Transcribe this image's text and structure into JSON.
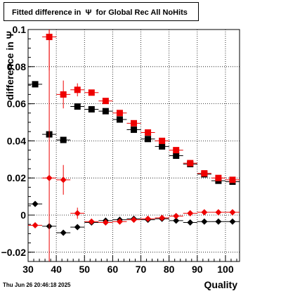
{
  "title": "Fitted difference in  Ψ  for Global Rec All NoHits",
  "footer": "Thu Jun 26 20:46:18 2025",
  "colors": {
    "series_black": "#000000",
    "series_red": "#ee0000",
    "grid": "#000000"
  },
  "chart_data": {
    "type": "scatter",
    "title": "Fitted difference in  Ψ  for Global Rec All NoHits",
    "xlabel": "Quality",
    "ylabel": "difference in  Ψ",
    "xlim": [
      30,
      105
    ],
    "ylim": [
      -0.025,
      0.1
    ],
    "x_ticks": [
      30,
      40,
      50,
      60,
      70,
      80,
      90,
      100
    ],
    "y_ticks": [
      -0.02,
      0,
      0.02,
      0.04,
      0.06,
      0.08,
      0.1
    ],
    "y_tick_labels": [
      "−0.02",
      "0",
      "0.02",
      "0.04",
      "0.06",
      "0.08",
      "0.1"
    ],
    "grid": true,
    "series": [
      {
        "marker": "square",
        "color": "#000000",
        "points": [
          {
            "x": 32.5,
            "y": 0.0705,
            "yerr": 0.0
          },
          {
            "x": 37.5,
            "y": 0.0435,
            "yerr": 0.0
          },
          {
            "x": 42.5,
            "y": 0.0405,
            "yerr": 0.0
          },
          {
            "x": 47.5,
            "y": 0.0585,
            "yerr": 0.0
          },
          {
            "x": 52.5,
            "y": 0.057,
            "yerr": 0.0
          },
          {
            "x": 57.5,
            "y": 0.056,
            "yerr": 0.0
          },
          {
            "x": 62.5,
            "y": 0.0515,
            "yerr": 0.0
          },
          {
            "x": 67.5,
            "y": 0.046,
            "yerr": 0.0
          },
          {
            "x": 72.5,
            "y": 0.041,
            "yerr": 0.0
          },
          {
            "x": 77.5,
            "y": 0.037,
            "yerr": 0.0
          },
          {
            "x": 82.5,
            "y": 0.032,
            "yerr": 0.0
          },
          {
            "x": 87.5,
            "y": 0.0275,
            "yerr": 0.0
          },
          {
            "x": 92.5,
            "y": 0.022,
            "yerr": 0.0
          },
          {
            "x": 97.5,
            "y": 0.0185,
            "yerr": 0.0
          },
          {
            "x": 102.5,
            "y": 0.018,
            "yerr": 0.0
          }
        ]
      },
      {
        "marker": "square",
        "color": "#ee0000",
        "points": [
          {
            "x": 37.5,
            "y": 0.096,
            "yerr": 0.018
          },
          {
            "x": 42.5,
            "y": 0.065,
            "yerr": 0.0075
          },
          {
            "x": 47.5,
            "y": 0.0675,
            "yerr": 0.0035
          },
          {
            "x": 52.5,
            "y": 0.066,
            "yerr": 0.0
          },
          {
            "x": 57.5,
            "y": 0.0615,
            "yerr": 0.0
          },
          {
            "x": 62.5,
            "y": 0.055,
            "yerr": 0.0
          },
          {
            "x": 67.5,
            "y": 0.0495,
            "yerr": 0.0
          },
          {
            "x": 72.5,
            "y": 0.0445,
            "yerr": 0.0
          },
          {
            "x": 77.5,
            "y": 0.04,
            "yerr": 0.0
          },
          {
            "x": 82.5,
            "y": 0.035,
            "yerr": 0.0
          },
          {
            "x": 87.5,
            "y": 0.028,
            "yerr": 0.0
          },
          {
            "x": 92.5,
            "y": 0.0225,
            "yerr": 0.0
          },
          {
            "x": 97.5,
            "y": 0.02,
            "yerr": 0.0
          },
          {
            "x": 102.5,
            "y": 0.019,
            "yerr": 0.0
          }
        ]
      },
      {
        "marker": "diamond",
        "color": "#000000",
        "points": [
          {
            "x": 32.5,
            "y": 0.006,
            "yerr": 0.0
          },
          {
            "x": 37.5,
            "y": -0.006,
            "yerr": 0.0
          },
          {
            "x": 42.5,
            "y": -0.0095,
            "yerr": 0.0
          },
          {
            "x": 47.5,
            "y": -0.0065,
            "yerr": 0.0
          },
          {
            "x": 52.5,
            "y": -0.004,
            "yerr": 0.0
          },
          {
            "x": 57.5,
            "y": -0.003,
            "yerr": 0.0
          },
          {
            "x": 62.5,
            "y": -0.0025,
            "yerr": 0.0
          },
          {
            "x": 67.5,
            "y": -0.002,
            "yerr": 0.0
          },
          {
            "x": 72.5,
            "y": -0.0025,
            "yerr": 0.0
          },
          {
            "x": 77.5,
            "y": -0.002,
            "yerr": 0.0
          },
          {
            "x": 82.5,
            "y": -0.003,
            "yerr": 0.0
          },
          {
            "x": 87.5,
            "y": -0.004,
            "yerr": 0.0
          },
          {
            "x": 92.5,
            "y": -0.0035,
            "yerr": 0.0
          },
          {
            "x": 97.5,
            "y": -0.0035,
            "yerr": 0.0
          },
          {
            "x": 102.5,
            "y": -0.0035,
            "yerr": 0.0
          }
        ]
      },
      {
        "marker": "diamond",
        "color": "#ee0000",
        "points": [
          {
            "x": 32.5,
            "y": -0.0055,
            "yerr": 0.0
          },
          {
            "x": 37.5,
            "y": 0.02,
            "yerr": 0.093
          },
          {
            "x": 42.5,
            "y": 0.019,
            "yerr": 0.008
          },
          {
            "x": 47.5,
            "y": 0.001,
            "yerr": 0.003
          },
          {
            "x": 52.5,
            "y": -0.0035,
            "yerr": 0.0
          },
          {
            "x": 57.5,
            "y": -0.004,
            "yerr": 0.0
          },
          {
            "x": 62.5,
            "y": -0.0035,
            "yerr": 0.0
          },
          {
            "x": 67.5,
            "y": -0.0025,
            "yerr": 0.0
          },
          {
            "x": 72.5,
            "y": -0.002,
            "yerr": 0.0
          },
          {
            "x": 77.5,
            "y": -0.0015,
            "yerr": 0.0
          },
          {
            "x": 82.5,
            "y": -0.0005,
            "yerr": 0.0
          },
          {
            "x": 87.5,
            "y": 0.001,
            "yerr": 0.0
          },
          {
            "x": 92.5,
            "y": 0.0015,
            "yerr": 0.0
          },
          {
            "x": 97.5,
            "y": 0.0015,
            "yerr": 0.0
          },
          {
            "x": 102.5,
            "y": 0.0015,
            "yerr": 0.0
          }
        ]
      }
    ]
  }
}
